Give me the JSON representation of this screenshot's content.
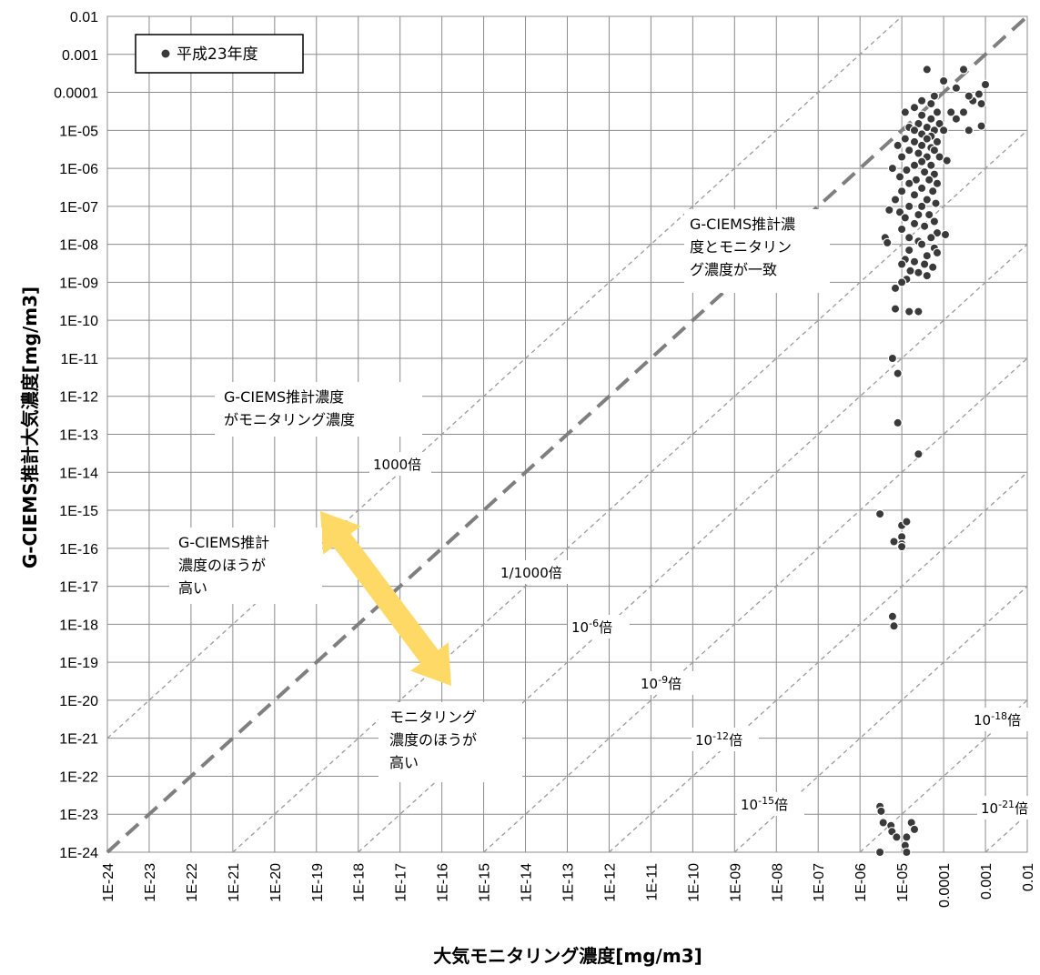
{
  "chart_data": {
    "type": "scatter",
    "xlabel": "大気モニタリング濃度[mg/m3]",
    "ylabel": "G-CIEMS推計大気濃度[mg/m3]",
    "x_scale": "log",
    "y_scale": "log",
    "xlim": [
      1e-24,
      0.01
    ],
    "ylim": [
      1e-24,
      0.01
    ],
    "grid": true,
    "legend": {
      "position": "top-left",
      "entries": [
        "平成23年度"
      ]
    },
    "x_tick_labels": [
      "1E-24",
      "1E-23",
      "1E-22",
      "1E-21",
      "1E-20",
      "1E-19",
      "1E-18",
      "1E-17",
      "1E-16",
      "1E-15",
      "1E-14",
      "1E-13",
      "1E-12",
      "1E-11",
      "1E-10",
      "1E-09",
      "1E-08",
      "1E-07",
      "1E-06",
      "1E-05",
      "0.0001",
      "0.001",
      "0.01"
    ],
    "y_tick_labels": [
      "1E-24",
      "1E-23",
      "1E-22",
      "1E-21",
      "1E-20",
      "1E-19",
      "1E-18",
      "1E-17",
      "1E-16",
      "1E-15",
      "1E-14",
      "1E-13",
      "1E-12",
      "1E-11",
      "1E-10",
      "1E-09",
      "1E-08",
      "1E-07",
      "1E-06",
      "1E-05",
      "0.0001",
      "0.001",
      "0.01"
    ],
    "reference_lines": [
      {
        "ratio_exp": 0,
        "style": "thick-dash"
      },
      {
        "ratio_exp": 3
      },
      {
        "ratio_exp": -3
      },
      {
        "ratio_exp": -6
      },
      {
        "ratio_exp": -9
      },
      {
        "ratio_exp": -12
      },
      {
        "ratio_exp": -15
      },
      {
        "ratio_exp": -18
      },
      {
        "ratio_exp": -21
      }
    ],
    "series": [
      {
        "name": "平成23年度",
        "color": "#3a3a3a",
        "points": [
          [
            4e-05,
            0.0004
          ],
          [
            0.0001,
            0.0002
          ],
          [
            0.0003,
            0.0004
          ],
          [
            0.0002,
            0.00013
          ],
          [
            0.001,
            0.00016
          ],
          [
            0.0007,
            9e-05
          ],
          [
            0.0005,
            6e-05
          ],
          [
            0.0004,
            8e-05
          ],
          [
            0.0008,
            5e-05
          ],
          [
            0.0003,
            3e-05
          ],
          [
            0.00015,
            3e-05
          ],
          [
            0.0002,
            2e-05
          ],
          [
            0.0008,
            1.3e-05
          ],
          [
            0.0004,
            1e-05
          ],
          [
            6e-05,
            8e-05
          ],
          [
            3e-05,
            6e-05
          ],
          [
            5e-05,
            5e-05
          ],
          [
            2e-05,
            4e-05
          ],
          [
            7e-05,
            3e-05
          ],
          [
            1.2e-05,
            3e-05
          ],
          [
            3e-05,
            2.5e-05
          ],
          [
            5e-05,
            2e-05
          ],
          [
            2.5e-05,
            1.5e-05
          ],
          [
            8e-05,
            1.5e-05
          ],
          [
            4e-05,
            1.2e-05
          ],
          [
            1.5e-05,
            1.2e-05
          ],
          [
            6e-05,
            1e-05
          ],
          [
            2e-05,
            1e-05
          ],
          [
            0.0001,
            1e-05
          ],
          [
            3e-05,
            8e-06
          ],
          [
            5e-05,
            7e-06
          ],
          [
            1.2e-05,
            6e-06
          ],
          [
            4e-05,
            6e-06
          ],
          [
            7e-05,
            5e-06
          ],
          [
            2e-05,
            5e-06
          ],
          [
            8e-06,
            4e-06
          ],
          [
            3e-05,
            4e-06
          ],
          [
            5e-05,
            3.5e-06
          ],
          [
            1.5e-05,
            3e-06
          ],
          [
            6e-05,
            3e-06
          ],
          [
            2.5e-05,
            2.5e-06
          ],
          [
            4e-05,
            2e-06
          ],
          [
            1e-05,
            2e-06
          ],
          [
            8e-05,
            2e-06
          ],
          [
            3e-05,
            1.5e-06
          ],
          [
            0.00012,
            1.6e-06
          ],
          [
            5e-05,
            1.2e-06
          ],
          [
            2e-05,
            1.2e-06
          ],
          [
            6e-06,
            1e-06
          ],
          [
            1.3e-05,
            9e-07
          ],
          [
            3.5e-05,
            8e-07
          ],
          [
            6e-05,
            7e-07
          ],
          [
            9e-06,
            6e-07
          ],
          [
            2.2e-05,
            5e-07
          ],
          [
            4.5e-05,
            5e-07
          ],
          [
            1.5e-05,
            4e-07
          ],
          [
            7e-05,
            4e-07
          ],
          [
            3e-05,
            3e-07
          ],
          [
            5.5e-05,
            2.5e-07
          ],
          [
            1e-05,
            2.5e-07
          ],
          [
            2e-05,
            2e-07
          ],
          [
            4e-05,
            1.5e-07
          ],
          [
            7e-06,
            1.5e-07
          ],
          [
            6.5e-05,
            1.2e-07
          ],
          [
            1.5e-05,
            1e-07
          ],
          [
            3e-05,
            1e-07
          ],
          [
            5e-06,
            8e-08
          ],
          [
            9e-06,
            7e-08
          ],
          [
            2.5e-05,
            6e-08
          ],
          [
            4.5e-05,
            6e-08
          ],
          [
            1.2e-05,
            5e-08
          ],
          [
            6e-05,
            4e-08
          ],
          [
            2e-05,
            3.5e-08
          ],
          [
            3.5e-05,
            3e-08
          ],
          [
            1e-05,
            2.5e-08
          ],
          [
            7e-05,
            2e-08
          ],
          [
            0.00011,
            1.8e-08
          ],
          [
            1.5e-05,
            1.5e-08
          ],
          [
            4e-06,
            1.5e-08
          ],
          [
            4.5e-06,
            1.1e-08
          ],
          [
            5e-05,
            1.5e-08
          ],
          [
            2.5e-05,
            1.2e-08
          ],
          [
            3e-05,
            1e-08
          ],
          [
            6e-05,
            8e-09
          ],
          [
            1.5e-05,
            7e-09
          ],
          [
            7e-05,
            6e-09
          ],
          [
            4e-05,
            5e-09
          ],
          [
            1.2e-05,
            4e-09
          ],
          [
            2e-05,
            3.5e-09
          ],
          [
            1e-05,
            3e-09
          ],
          [
            3.5e-05,
            3e-09
          ],
          [
            5.5e-05,
            2.5e-09
          ],
          [
            1.6e-05,
            2e-09
          ],
          [
            2.5e-05,
            1.8e-09
          ],
          [
            4e-05,
            1.5e-09
          ],
          [
            1.3e-05,
            1.2e-09
          ],
          [
            1e-05,
            1e-09
          ],
          [
            7e-06,
            7e-10
          ],
          [
            7e-06,
            2e-10
          ],
          [
            1.5e-05,
            1.7e-10
          ],
          [
            2.5e-05,
            1.7e-10
          ],
          [
            6e-06,
            1e-11
          ],
          [
            8e-06,
            4e-12
          ],
          [
            8e-06,
            2e-13
          ],
          [
            2.5e-05,
            3e-14
          ],
          [
            3e-06,
            8e-16
          ],
          [
            1e-05,
            4e-16
          ],
          [
            1.3e-05,
            5e-16
          ],
          [
            1e-05,
            2e-16
          ],
          [
            1e-05,
            1.3e-16
          ],
          [
            6.5e-06,
            1.5e-16
          ],
          [
            1e-05,
            1.1e-16
          ],
          [
            6e-06,
            1.6e-18
          ],
          [
            6.5e-06,
            9e-19
          ],
          [
            3e-06,
            1.6e-23
          ],
          [
            3.2e-06,
            1.2e-23
          ],
          [
            3.6e-06,
            6e-24
          ],
          [
            5.5e-06,
            5e-24
          ],
          [
            5.8e-06,
            3.5e-24
          ],
          [
            7.5e-06,
            2.5e-24
          ],
          [
            1.3e-05,
            2.5e-24
          ],
          [
            1.2e-05,
            1.5e-24
          ],
          [
            1.7e-05,
            6e-24
          ],
          [
            2e-05,
            4e-24
          ],
          [
            3e-06,
            1e-24
          ],
          [
            1.3e-05,
            1e-24
          ],
          [
            1e-05,
            6e-25
          ],
          [
            1.5e-05,
            5e-25
          ]
        ]
      }
    ],
    "annotations": [
      {
        "id": "agree",
        "lines": [
          "G-CIEMS推計濃",
          "度とモニタリン",
          "グ濃度が一致"
        ]
      },
      {
        "id": "ratio1000",
        "lines": [
          "G-CIEMS推計濃度",
          "がモニタリング濃度"
        ]
      },
      {
        "id": "higher",
        "lines": [
          "G-CIEMS推計",
          "濃度のほうが",
          "高い"
        ]
      },
      {
        "id": "lower",
        "lines": [
          "モニタリング",
          "濃度のほうが",
          "高い"
        ]
      }
    ],
    "ratio_labels": {
      "p3": "1000倍",
      "m3": "1/1000倍",
      "m6": [
        "10",
        "-6",
        "倍"
      ],
      "m9": [
        "10",
        "-9",
        "倍"
      ],
      "m12": [
        "10",
        "-12",
        "倍"
      ],
      "m15": [
        "10",
        "-15",
        "倍"
      ],
      "m18": [
        "10",
        "-18",
        "倍"
      ],
      "m21": [
        "10",
        "-21",
        "倍"
      ]
    },
    "arrow_color": "#FFD966"
  }
}
